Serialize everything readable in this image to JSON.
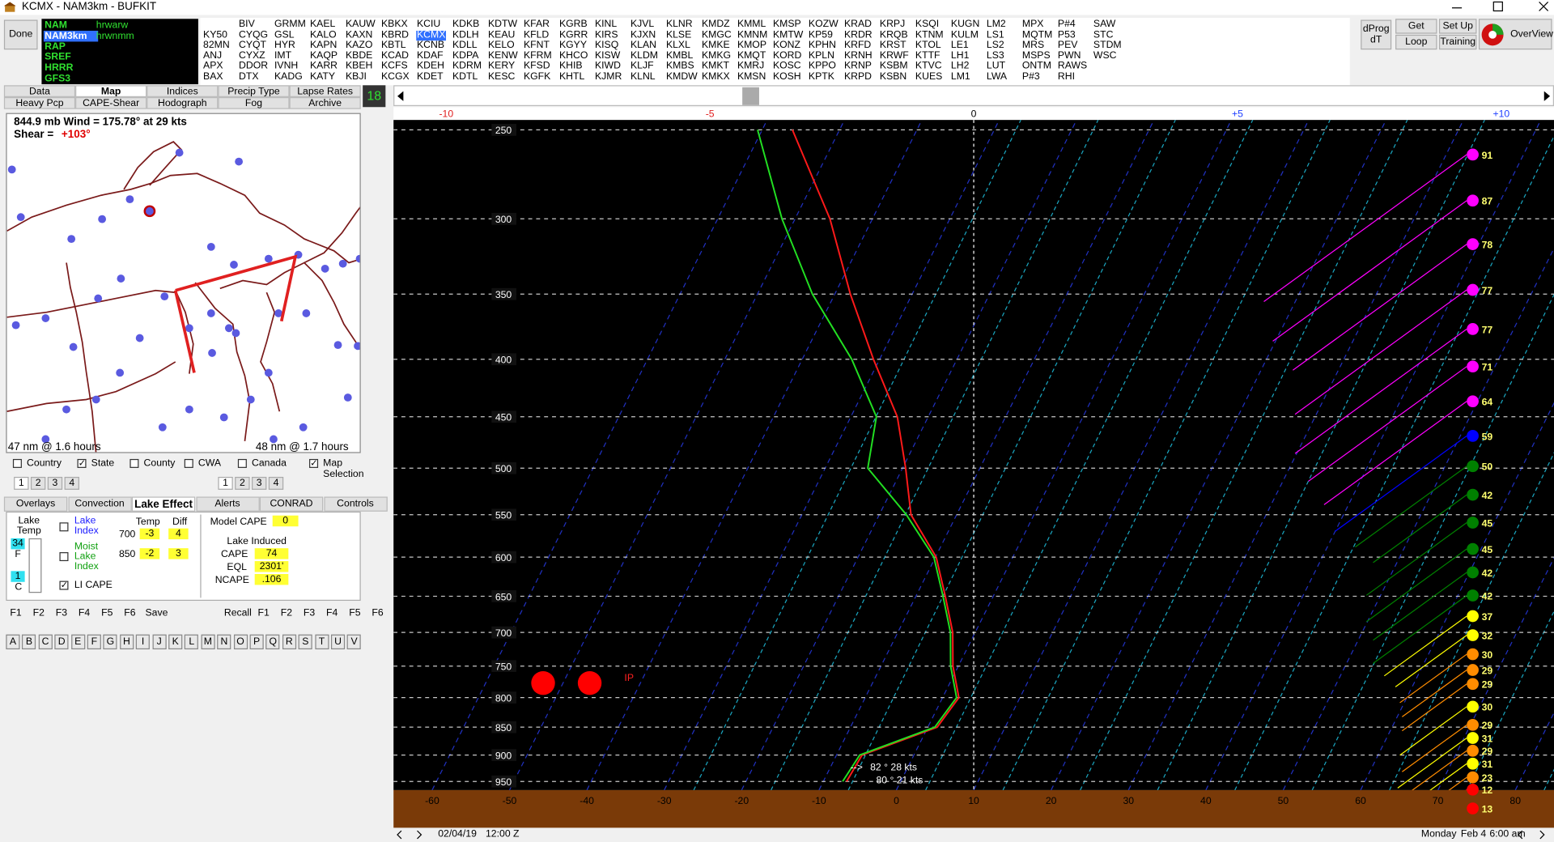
{
  "window": {
    "title": "KCMX - NAM3km - BUFKIT"
  },
  "toolbar": {
    "done": "Done",
    "models": [
      "NAM",
      "NAM3km",
      "RAP",
      "SREF",
      "HRRR",
      "GFS3"
    ],
    "selected_model": 1,
    "submodels": [
      "hrwarw",
      "hrwnmm"
    ],
    "stations": {
      "columns": [
        [
          "KY50",
          "82MN",
          "ANJ",
          "APX",
          "BAX"
        ],
        [
          "BIV",
          "CYQG",
          "CYQT",
          "CYXZ",
          "DDOR",
          "DTX"
        ],
        [
          "GRMM",
          "GSL",
          "HYR",
          "IMT",
          "IVNH",
          "KADG"
        ],
        [
          "KAEL",
          "KALO",
          "KAPN",
          "KAQP",
          "KARR",
          "KATY"
        ],
        [
          "KAUW",
          "KAXN",
          "KAZO",
          "KBDE",
          "KBEH",
          "KBJI"
        ],
        [
          "KBKX",
          "KBRD",
          "KBTL",
          "KCAD",
          "KCFS",
          "KCGX"
        ],
        [
          "KCIU",
          "KCMX",
          "KCNB",
          "KDAF",
          "KDEH",
          "KDET"
        ],
        [
          "KDKB",
          "KDLH",
          "KDLL",
          "KDPA",
          "KDRM",
          "KDTL"
        ],
        [
          "KDTW",
          "KEAU",
          "KELO",
          "KENW",
          "KERY",
          "KESC"
        ],
        [
          "KFAR",
          "KFLD",
          "KFNT",
          "KFRM",
          "KFSD",
          "KGFK"
        ],
        [
          "KGRB",
          "KGRR",
          "KGYY",
          "KHCO",
          "KHIB",
          "KHTL"
        ],
        [
          "KINL",
          "KIRS",
          "KISQ",
          "KISW",
          "KIWD",
          "KJMR"
        ],
        [
          "KJVL",
          "KJXN",
          "KLAN",
          "KLDM",
          "KLJF",
          "KLNL"
        ],
        [
          "KLNR",
          "KLSE",
          "KLXL",
          "KMBL",
          "KMBS",
          "KMDW"
        ],
        [
          "KMDZ",
          "KMGC",
          "KMKE",
          "KMKG",
          "KMKT",
          "KMKX"
        ],
        [
          "KMML",
          "KMNM",
          "KMOP",
          "KMQT",
          "KMRJ",
          "KMSN"
        ],
        [
          "KMSP",
          "KMTW",
          "KONZ",
          "KORD",
          "KOSC",
          "KOSH"
        ],
        [
          "KOZW",
          "KP59",
          "KPHN",
          "KPLN",
          "KPPO",
          "KPTK"
        ],
        [
          "KRAD",
          "KRDR",
          "KRFD",
          "KRNH",
          "KRNP",
          "KRPD"
        ],
        [
          "KRPJ",
          "KRQB",
          "KRST",
          "KRWF",
          "KSBM",
          "KSBN"
        ],
        [
          "KSQI",
          "KTNM",
          "KTOL",
          "KTTF",
          "KTVC",
          "KUES"
        ],
        [
          "KUGN",
          "KULM",
          "LE1",
          "LH1",
          "LH2",
          "LM1"
        ],
        [
          "LM2",
          "LS1",
          "LS2",
          "LS3",
          "LUT",
          "LWA"
        ],
        [
          "MPX",
          "MQTM",
          "MRS",
          "MSPS",
          "ONTM",
          "P#3"
        ],
        [
          "P#4",
          "P53",
          "PEV",
          "PWN",
          "RAWS",
          "RHI"
        ],
        [
          "SAW",
          "STC",
          "STDM",
          "WSC"
        ]
      ],
      "selected": {
        "column": 6,
        "row": 1
      }
    },
    "dprog": [
      "dProg",
      "dT"
    ],
    "get_data": "Get Data",
    "set_up": "Set Up",
    "loop": "Loop",
    "training": "Training",
    "overview": "OverView"
  },
  "tabs": {
    "rows": [
      [
        "Data",
        "Map",
        "Indices",
        "Precip Type",
        "Lapse Rates"
      ],
      [
        "Heavy Pcp",
        "CAPE-Shear",
        "Hodograph",
        "Fog",
        "Archive"
      ]
    ],
    "active": {
      "row": 0,
      "column": 1
    },
    "frame": 18
  },
  "map": {
    "wind_info": "844.9 mb Wind = 175.78° at 29 kts",
    "shear_label": "Shear =",
    "shear_value": "+103°",
    "left_note": "47 nm @ 1.6 hours",
    "right_note": "48 nm @ 1.7 hours",
    "layers": [
      {
        "label": "Country",
        "checked": false
      },
      {
        "label": "State",
        "checked": true
      },
      {
        "label": "County",
        "checked": false
      },
      {
        "label": "CWA",
        "checked": false
      },
      {
        "label": "Canada",
        "checked": false
      },
      {
        "label": "Map Selection",
        "checked": true
      }
    ],
    "pages_left": [
      1,
      2,
      3,
      4
    ],
    "pages_right": [
      1,
      2,
      3,
      4
    ]
  },
  "panel_tabs": {
    "labels": [
      "Overlays",
      "Convection",
      "Lake Effect",
      "Alerts",
      "CONRAD",
      "Controls"
    ],
    "active": 2
  },
  "lake": {
    "lake_temp": [
      "Lake",
      "Temp"
    ],
    "temp_f": 34,
    "unit_f": "F",
    "temp_c": 1,
    "unit_c": "C",
    "lake_index": "Lake Index",
    "moist_lake_index": "Moist Lake Index",
    "li_cape": "LI CAPE",
    "li_cape_checked": true,
    "table": {
      "header": [
        "Temp",
        "Diff"
      ],
      "rows": [
        [
          700,
          -3,
          4
        ],
        [
          850,
          -2,
          3
        ]
      ]
    },
    "model_cape_label": "Model CAPE",
    "model_cape": 0,
    "lake_induced": "Lake Induced",
    "cape_label": "CAPE",
    "cape": 74,
    "eql_label": "EQL",
    "eql": "2301'",
    "ncape_label": "NCAPE",
    "ncape": ".106"
  },
  "keys": {
    "left": [
      "F1",
      "F2",
      "F3",
      "F4",
      "F5",
      "F6"
    ],
    "save": "Save",
    "recall": "Recall",
    "right": [
      "F1",
      "F2",
      "F3",
      "F4",
      "F5",
      "F6"
    ],
    "letters": [
      "A",
      "B",
      "C",
      "D",
      "E",
      "F",
      "G",
      "H",
      "I",
      "J",
      "K",
      "L",
      "M",
      "N",
      "O",
      "P",
      "Q",
      "R",
      "S",
      "T",
      "U",
      "V"
    ]
  },
  "chart_data": {
    "type": "skewt",
    "log_scale": true,
    "grid": true,
    "xlim": [
      -65,
      85
    ],
    "xticks": [
      -60,
      -50,
      -40,
      -30,
      -20,
      -10,
      0,
      10,
      20,
      30,
      40,
      50,
      60,
      70,
      80
    ],
    "ylim": [
      967,
      245
    ],
    "yticks": [
      250,
      300,
      350,
      400,
      450,
      500,
      550,
      600,
      650,
      700,
      750,
      800,
      850,
      900,
      950
    ],
    "x2lim": [
      -11,
      11
    ],
    "x2ticks": [
      -10,
      -5,
      0,
      {
        "value": 5,
        "label": "+5"
      },
      {
        "value": 10,
        "label": "+10"
      }
    ],
    "y": [
      250,
      300,
      350,
      400,
      450,
      500,
      550,
      600,
      650,
      700,
      750,
      800,
      850,
      900,
      950
    ],
    "series": [
      {
        "color": "#ff1a1a",
        "values": [
          -56.1,
          -45.5,
          -38,
          -30.8,
          -24,
          -19.6,
          -15.9,
          -9.9,
          -6.2,
          -2.9,
          -0.7,
          2.1,
          1.2,
          -6.7,
          -7
        ]
      },
      {
        "color": "#22e022",
        "values": [
          -60.6,
          -51.7,
          -42.9,
          -33.6,
          -26.7,
          -24.5,
          -16.5,
          -10.2,
          -6.5,
          -3.2,
          -1,
          1.8,
          0.9,
          -7,
          -7.5
        ]
      }
    ],
    "wind": {
      "pressure": [
        263,
        289,
        316,
        347,
        376,
        406,
        436,
        468,
        498,
        528,
        559,
        590,
        619,
        649,
        677,
        704,
        732,
        756,
        778,
        815,
        846,
        869,
        892,
        916,
        942,
        966,
        1004
      ],
      "speed": [
        91,
        87,
        78,
        77,
        77,
        71,
        64,
        59,
        50,
        42,
        45,
        45,
        42,
        42,
        37,
        32,
        30,
        29,
        29,
        30,
        29,
        31,
        29,
        31,
        23,
        12,
        13
      ],
      "colors": [
        "#ff00ff",
        "#ff00ff",
        "#ff00ff",
        "#ff00ff",
        "#ff00ff",
        "#ff00ff",
        "#ff00ff",
        "#0000ff",
        "#008000",
        "#008000",
        "#008000",
        "#008000",
        "#008000",
        "#008000",
        "#ffff00",
        "#ffff00",
        "#ff8c00",
        "#ff8c00",
        "#ff8c00",
        "#ffff00",
        "#ff8c00",
        "#ffff00",
        "#ff8c00",
        "#ffff00",
        "#ff8c00",
        "#ff0000",
        "#ff0000"
      ]
    },
    "annotations": [
      "IP",
      "82 ° 28 kts",
      "80 ° 21 kts"
    ]
  },
  "status": {
    "date": "02/04/19",
    "time": "12:00 Z",
    "weekday": "Monday",
    "day": "Feb 4",
    "local": "6:00 am"
  }
}
